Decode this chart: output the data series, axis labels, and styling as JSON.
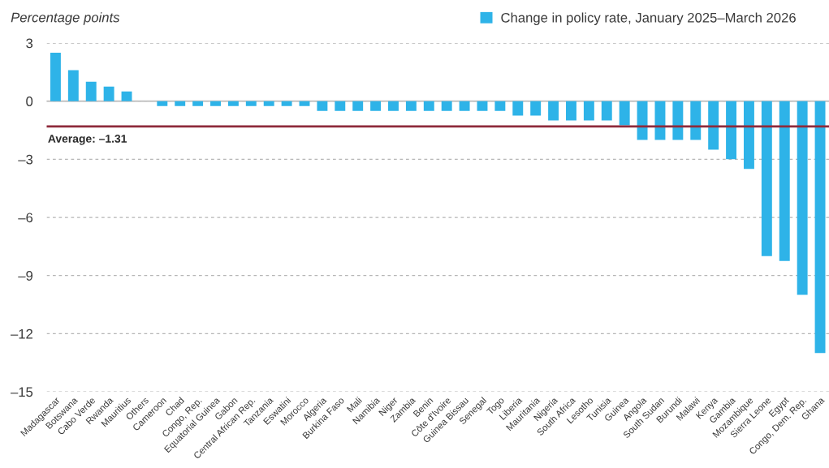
{
  "chart_data": {
    "type": "bar",
    "ylabel": "Percentage points",
    "categories": [
      "Madagascar",
      "Botswana",
      "Cabo Verde",
      "Rwanda",
      "Mauritius",
      "Others",
      "Cameroon",
      "Chad",
      "Congo, Rep.",
      "Equatorial Guinea",
      "Gabon",
      "Central African Rep.",
      "Tanzania",
      "Eswatini",
      "Morocco",
      "Algeria",
      "Burkina Faso",
      "Mali",
      "Namibia",
      "Niger",
      "Zambia",
      "Benin",
      "Côte d'Ivoire",
      "Guinea Bissau",
      "Senegal",
      "Togo",
      "Liberia",
      "Mauritania",
      "Nigeria",
      "South Africa",
      "Lesotho",
      "Tunisia",
      "Guinea",
      "Angola",
      "South Sudan",
      "Burundi",
      "Malawi",
      "Kenya",
      "Gambia",
      "Mozambique",
      "Sierra Leone",
      "Egypt",
      "Congo, Dem. Rep.",
      "Ghana"
    ],
    "series": [
      {
        "name": "Change in policy rate, January 2025–March 2026",
        "color": "#2eb3e8",
        "values": [
          2.5,
          1.6,
          1.0,
          0.75,
          0.5,
          0,
          -0.25,
          -0.25,
          -0.25,
          -0.25,
          -0.25,
          -0.25,
          -0.25,
          -0.25,
          -0.25,
          -0.5,
          -0.5,
          -0.5,
          -0.5,
          -0.5,
          -0.5,
          -0.5,
          -0.5,
          -0.5,
          -0.5,
          -0.5,
          -0.75,
          -0.75,
          -1.0,
          -1.0,
          -1.0,
          -1.0,
          -1.25,
          -2.0,
          -2.0,
          -2.0,
          -2.0,
          -2.5,
          -3.0,
          -3.5,
          -8.0,
          -8.25,
          -10.0,
          -13.0
        ]
      }
    ],
    "ylim": [
      -15,
      3
    ],
    "yticks": [
      3,
      0,
      {
        "value": -3,
        "label": "–3"
      },
      {
        "value": -6,
        "label": "–6"
      },
      {
        "value": -9,
        "label": "–9"
      },
      {
        "value": -12,
        "label": "–12"
      },
      {
        "value": -15,
        "label": "–15"
      }
    ],
    "grid": "y",
    "legend": "top right",
    "ref_lines": [
      {
        "axis": "y",
        "value": 0,
        "color": "#c4c4c4",
        "line_style": "solid"
      },
      {
        "axis": "y",
        "value": -1.31,
        "label": "Average: –1.31",
        "color": "#8e2a3b",
        "line_style": "solid"
      }
    ]
  }
}
